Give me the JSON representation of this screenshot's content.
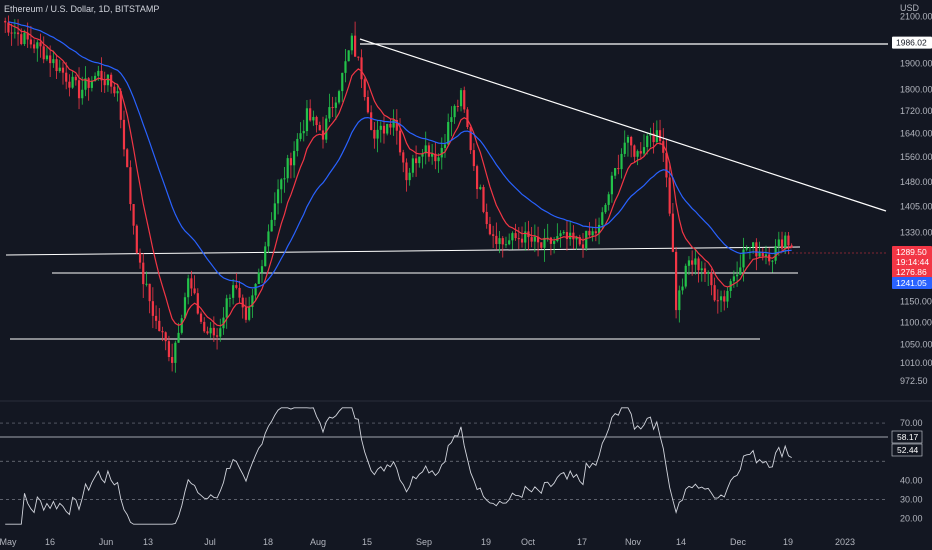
{
  "chart_data": {
    "type": "candlestick",
    "title": "Ethereum / U.S. Dollar, 1D, BITSTAMP",
    "currency": "USD",
    "price_axis": {
      "ticks": [
        "2100.00",
        "1986.02",
        "1900.00",
        "1800.00",
        "1720.00",
        "1640.00",
        "1560.00",
        "1480.00",
        "1405.00",
        "1330.00",
        "1289.50",
        "1276.86",
        "1241.05",
        "1150.00",
        "1100.00",
        "1050.00",
        "1010.00",
        "972.50"
      ],
      "range": [
        950,
        2110
      ],
      "scale": "log"
    },
    "time_axis": {
      "labels": [
        "May",
        "16",
        "Jun",
        "13",
        "Jul",
        "18",
        "Aug",
        "15",
        "Sep",
        "19",
        "Oct",
        "17",
        "Nov",
        "14",
        "Dec",
        "19",
        "2023"
      ]
    },
    "colors": {
      "up": "#26a69a",
      "up_candle": "#23c24a",
      "down": "#f23645",
      "ema_fast": "#f23645",
      "ema_slow": "#2962ff",
      "trendline": "#ffffff",
      "rsi": "#d1d4dc"
    },
    "price_labels": {
      "resistance": "1986.02",
      "last": "1289.50",
      "countdown": "19:14:44",
      "ema_fast": "1276.86",
      "ema_slow": "1241.05"
    },
    "anchors": [
      {
        "t": 0,
        "p": 2080
      },
      {
        "t": 6,
        "p": 2010
      },
      {
        "t": 12,
        "p": 1960
      },
      {
        "t": 18,
        "p": 1880
      },
      {
        "t": 24,
        "p": 1790
      },
      {
        "t": 30,
        "p": 1860
      },
      {
        "t": 36,
        "p": 1790
      },
      {
        "t": 40,
        "p": 1420
      },
      {
        "t": 43,
        "p": 1230
      },
      {
        "t": 48,
        "p": 1100
      },
      {
        "t": 53,
        "p": 1020
      },
      {
        "t": 58,
        "p": 1200
      },
      {
        "t": 63,
        "p": 1080
      },
      {
        "t": 67,
        "p": 1070
      },
      {
        "t": 72,
        "p": 1200
      },
      {
        "t": 76,
        "p": 1090
      },
      {
        "t": 80,
        "p": 1220
      },
      {
        "t": 85,
        "p": 1420
      },
      {
        "t": 90,
        "p": 1560
      },
      {
        "t": 95,
        "p": 1700
      },
      {
        "t": 100,
        "p": 1640
      },
      {
        "t": 106,
        "p": 1850
      },
      {
        "t": 109,
        "p": 1990
      },
      {
        "t": 112,
        "p": 1860
      },
      {
        "t": 116,
        "p": 1620
      },
      {
        "t": 122,
        "p": 1700
      },
      {
        "t": 126,
        "p": 1500
      },
      {
        "t": 131,
        "p": 1600
      },
      {
        "t": 136,
        "p": 1560
      },
      {
        "t": 140,
        "p": 1700
      },
      {
        "t": 143,
        "p": 1770
      },
      {
        "t": 148,
        "p": 1480
      },
      {
        "t": 152,
        "p": 1340
      },
      {
        "t": 156,
        "p": 1300
      },
      {
        "t": 162,
        "p": 1320
      },
      {
        "t": 168,
        "p": 1290
      },
      {
        "t": 174,
        "p": 1315
      },
      {
        "t": 180,
        "p": 1300
      },
      {
        "t": 186,
        "p": 1340
      },
      {
        "t": 190,
        "p": 1480
      },
      {
        "t": 194,
        "p": 1610
      },
      {
        "t": 198,
        "p": 1570
      },
      {
        "t": 202,
        "p": 1650
      },
      {
        "t": 206,
        "p": 1600
      },
      {
        "t": 208,
        "p": 1400
      },
      {
        "t": 210,
        "p": 1140
      },
      {
        "t": 214,
        "p": 1250
      },
      {
        "t": 218,
        "p": 1240
      },
      {
        "t": 222,
        "p": 1170
      },
      {
        "t": 225,
        "p": 1160
      },
      {
        "t": 228,
        "p": 1220
      },
      {
        "t": 232,
        "p": 1290
      },
      {
        "t": 236,
        "p": 1280
      },
      {
        "t": 240,
        "p": 1270
      },
      {
        "t": 244,
        "p": 1320
      },
      {
        "t": 246,
        "p": 1289.5
      }
    ],
    "rsi": {
      "ticks": [
        "70.00",
        "58.17",
        "52.44",
        "40.00",
        "30.00",
        "20.00"
      ],
      "range": [
        15,
        80
      ],
      "levels": [
        70,
        50,
        30
      ],
      "last": "58.17",
      "ma": "52.44"
    }
  }
}
